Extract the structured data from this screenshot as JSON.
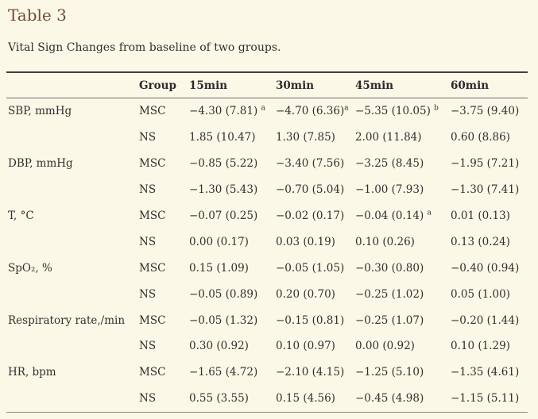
{
  "page": {
    "title": "Table 3",
    "caption": "Vital Sign Changes from baseline of two groups."
  },
  "colors": {
    "background": "#fcf8e7",
    "title_text": "#6f4b39",
    "body_text": "#2f2f2f",
    "rule_top": "#3f3f3f",
    "rule_header": "#6e6e6e",
    "rule_bottom": "#8a8a8a"
  },
  "table": {
    "headers": [
      "",
      "Group",
      "15min",
      "30min",
      "45min",
      "60min"
    ],
    "rows": [
      {
        "label": "SBP, mmHg",
        "group": "MSC",
        "values": [
          {
            "text": "−4.30 (7.81) ",
            "sup": "a"
          },
          {
            "text": "−4.70 (6.36)",
            "sup": "a"
          },
          {
            "text": "−5.35 (10.05) ",
            "sup": "b"
          },
          {
            "text": "−3.75 (9.40)",
            "sup": ""
          }
        ]
      },
      {
        "label": "",
        "group": "NS",
        "values": [
          {
            "text": "1.85 (10.47)",
            "sup": ""
          },
          {
            "text": "1.30 (7.85)",
            "sup": ""
          },
          {
            "text": "2.00 (11.84)",
            "sup": ""
          },
          {
            "text": "0.60 (8.86)",
            "sup": ""
          }
        ]
      },
      {
        "label": "DBP, mmHg",
        "group": "MSC",
        "values": [
          {
            "text": "−0.85 (5.22)",
            "sup": ""
          },
          {
            "text": "−3.40 (7.56)",
            "sup": ""
          },
          {
            "text": "−3.25 (8.45)",
            "sup": ""
          },
          {
            "text": "−1.95 (7.21)",
            "sup": ""
          }
        ]
      },
      {
        "label": "",
        "group": "NS",
        "values": [
          {
            "text": "−1.30 (5.43)",
            "sup": ""
          },
          {
            "text": "−0.70 (5.04)",
            "sup": ""
          },
          {
            "text": "−1.00 (7.93)",
            "sup": ""
          },
          {
            "text": "−1.30 (7.41)",
            "sup": ""
          }
        ]
      },
      {
        "label": "T, °C",
        "group": "MSC",
        "values": [
          {
            "text": "−0.07 (0.25)",
            "sup": ""
          },
          {
            "text": "−0.02 (0.17)",
            "sup": ""
          },
          {
            "text": "−0.04 (0.14) ",
            "sup": "a"
          },
          {
            "text": "0.01 (0.13)",
            "sup": ""
          }
        ]
      },
      {
        "label": "",
        "group": "NS",
        "values": [
          {
            "text": "0.00 (0.17)",
            "sup": ""
          },
          {
            "text": "0.03 (0.19)",
            "sup": ""
          },
          {
            "text": "0.10 (0.26)",
            "sup": ""
          },
          {
            "text": "0.13 (0.24)",
            "sup": ""
          }
        ]
      },
      {
        "label": "SpO₂, %",
        "group": "MSC",
        "values": [
          {
            "text": "0.15 (1.09)",
            "sup": ""
          },
          {
            "text": "−0.05 (1.05)",
            "sup": ""
          },
          {
            "text": "−0.30 (0.80)",
            "sup": ""
          },
          {
            "text": "−0.40 (0.94)",
            "sup": ""
          }
        ]
      },
      {
        "label": "",
        "group": "NS",
        "values": [
          {
            "text": "−0.05 (0.89)",
            "sup": ""
          },
          {
            "text": "0.20 (0.70)",
            "sup": ""
          },
          {
            "text": "−0.25 (1.02)",
            "sup": ""
          },
          {
            "text": "0.05 (1.00)",
            "sup": ""
          }
        ]
      },
      {
        "label": "Respiratory rate,/min",
        "group": "MSC",
        "values": [
          {
            "text": "−0.05 (1.32)",
            "sup": ""
          },
          {
            "text": "−0.15 (0.81)",
            "sup": ""
          },
          {
            "text": "−0.25 (1.07)",
            "sup": ""
          },
          {
            "text": "−0.20 (1.44)",
            "sup": ""
          }
        ]
      },
      {
        "label": "",
        "group": "NS",
        "values": [
          {
            "text": "0.30 (0.92)",
            "sup": ""
          },
          {
            "text": "0.10 (0.97)",
            "sup": ""
          },
          {
            "text": "0.00 (0.92)",
            "sup": ""
          },
          {
            "text": "0.10 (1.29)",
            "sup": ""
          }
        ]
      },
      {
        "label": "HR, bpm",
        "group": "MSC",
        "values": [
          {
            "text": "−1.65 (4.72)",
            "sup": ""
          },
          {
            "text": "−2.10 (4.15)",
            "sup": ""
          },
          {
            "text": "−1.25 (5.10)",
            "sup": ""
          },
          {
            "text": "−1.35 (4.61)",
            "sup": ""
          }
        ]
      },
      {
        "label": "",
        "group": "NS",
        "values": [
          {
            "text": "0.55 (3.55)",
            "sup": ""
          },
          {
            "text": "0.15 (4.56)",
            "sup": ""
          },
          {
            "text": "−0.45 (4.98)",
            "sup": ""
          },
          {
            "text": "−1.15 (5.11)",
            "sup": ""
          }
        ]
      }
    ]
  }
}
